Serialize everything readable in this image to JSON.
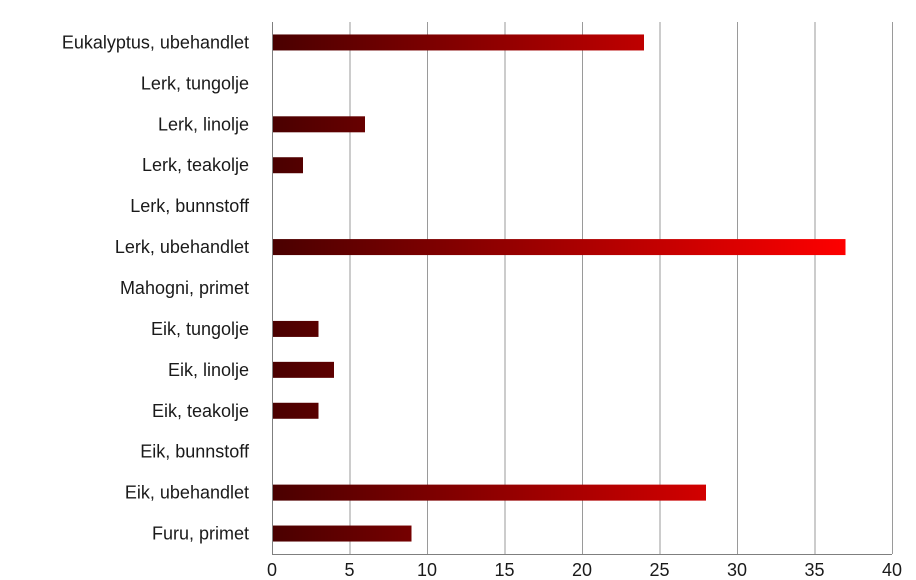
{
  "chart_data": {
    "type": "bar",
    "orientation": "horizontal",
    "categories": [
      "Eukalyptus, ubehandlet",
      "Lerk, tungolje",
      "Lerk, linolje",
      "Lerk, teakolje",
      "Lerk, bunnstoff",
      "Lerk, ubehandlet",
      "Mahogni, primet",
      "Eik, tungolje",
      "Eik, linolje",
      "Eik, teakolje",
      "Eik, bunnstoff",
      "Eik, ubehandlet",
      "Furu, primet"
    ],
    "values": [
      24,
      0,
      6,
      2,
      0,
      37,
      0,
      3,
      4,
      3,
      0,
      28,
      9
    ],
    "title": "",
    "xlabel": "",
    "ylabel": "",
    "xlim": [
      0,
      40
    ],
    "xticks": [
      "0",
      "5",
      "10",
      "15",
      "20",
      "25",
      "30",
      "35",
      "40"
    ],
    "grid": "vertical",
    "legend": "none",
    "colors": {
      "bar_dark": "#4a0000",
      "bar_bright": "#ff0000",
      "grid": "#9a9a9a"
    }
  }
}
